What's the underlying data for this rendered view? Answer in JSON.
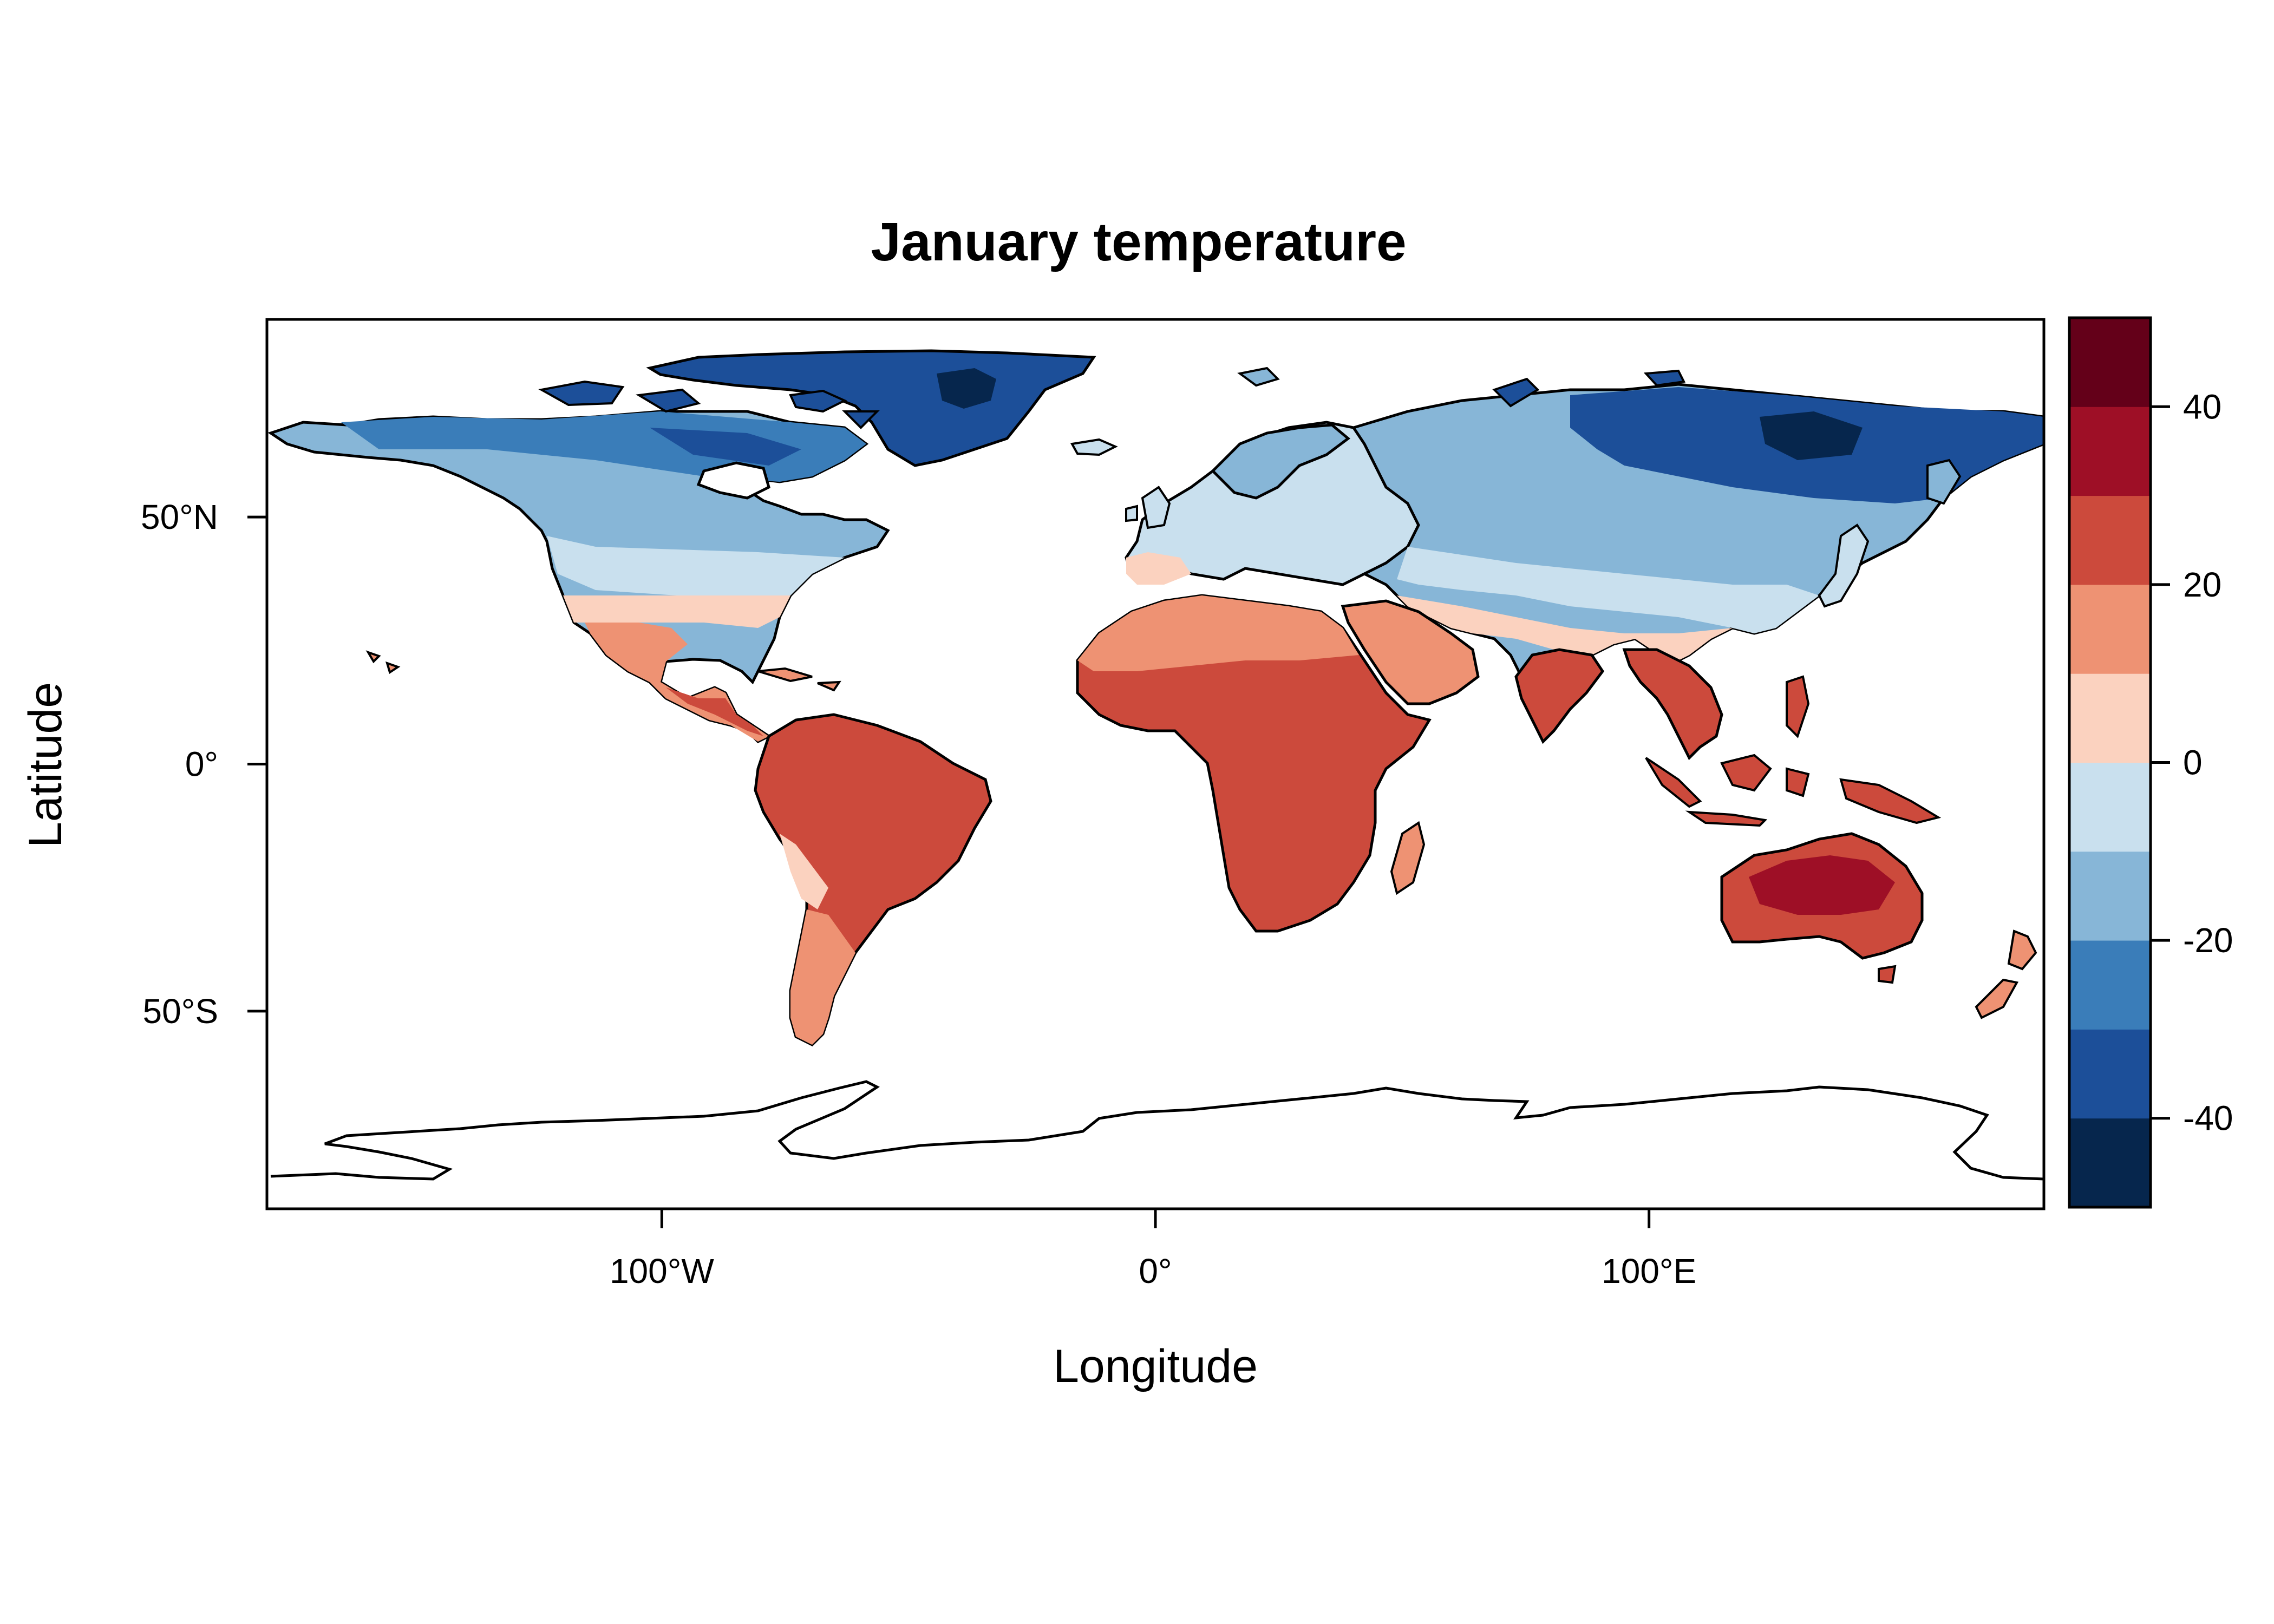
{
  "map": {
    "title": "January temperature",
    "xlabel": "Longitude",
    "ylabel": "Latitude",
    "x_ticks": [
      {
        "value": -100,
        "label": "100°W"
      },
      {
        "value": 0,
        "label": "0°"
      },
      {
        "value": 100,
        "label": "100°E"
      }
    ],
    "y_ticks": [
      {
        "value": 50,
        "label": "50°N"
      },
      {
        "value": 0,
        "label": "0°"
      },
      {
        "value": -50,
        "label": "50°S"
      }
    ],
    "xlim": [
      -180,
      180
    ],
    "ylim": [
      -90,
      90
    ],
    "projection": "equirectangular",
    "coastlines": true,
    "country_borders": true
  },
  "colorbar": {
    "breaks": [
      -50,
      -40,
      -30,
      -20,
      -10,
      0,
      10,
      20,
      30,
      40,
      50
    ],
    "colors": [
      "#06264d",
      "#1c4f99",
      "#3a7db9",
      "#87b6d7",
      "#c9e0ee",
      "#fbd2bf",
      "#ee9273",
      "#cc4a3c",
      "#9e0f26",
      "#640019"
    ],
    "ticks": [
      {
        "value": 40,
        "label": "40"
      },
      {
        "value": 20,
        "label": "20"
      },
      {
        "value": 0,
        "label": "0"
      },
      {
        "value": -20,
        "label": "-20"
      },
      {
        "value": -40,
        "label": "-40"
      }
    ]
  }
}
